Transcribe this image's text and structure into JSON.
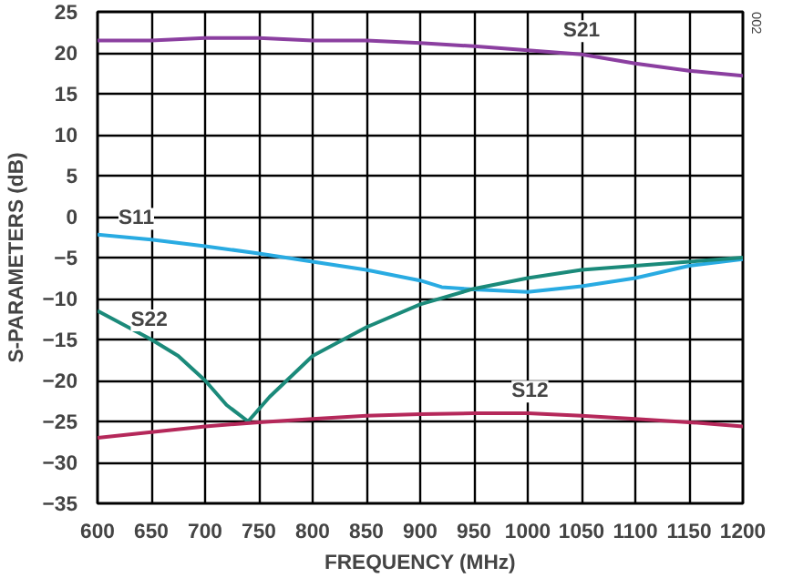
{
  "chart_data": {
    "type": "line",
    "xlabel": "FREQUENCY (MHz)",
    "ylabel": "S-PARAMETERS (dB)",
    "x": [
      600,
      650,
      700,
      750,
      800,
      850,
      900,
      950,
      1000,
      1050,
      1100,
      1150,
      1200
    ],
    "series": [
      {
        "name": "S21",
        "color": "#8b3fa0",
        "values": [
          21.5,
          21.5,
          21.8,
          21.8,
          21.5,
          21.5,
          21.2,
          20.8,
          20.3,
          19.8,
          18.7,
          17.8,
          17.2
        ]
      },
      {
        "name": "S11",
        "color": "#29abe2",
        "x": [
          600,
          650,
          700,
          750,
          800,
          850,
          900,
          920,
          950,
          1000,
          1050,
          1100,
          1150,
          1200
        ],
        "values": [
          -2.2,
          -2.8,
          -3.6,
          -4.5,
          -5.5,
          -6.5,
          -7.8,
          -8.6,
          -8.9,
          -9.2,
          -8.5,
          -7.5,
          -6.0,
          -5.2
        ]
      },
      {
        "name": "S22",
        "color": "#1b8a7a",
        "x": [
          600,
          650,
          675,
          700,
          720,
          740,
          760,
          800,
          850,
          900,
          950,
          1000,
          1050,
          1100,
          1150,
          1200
        ],
        "values": [
          -11.5,
          -15,
          -17,
          -20,
          -23,
          -25,
          -22,
          -17,
          -13.5,
          -10.7,
          -8.8,
          -7.5,
          -6.5,
          -6,
          -5.5,
          -5.0
        ]
      },
      {
        "name": "S12",
        "color": "#b5285a",
        "values": [
          -27,
          -26.3,
          -25.6,
          -25.1,
          -24.7,
          -24.3,
          -24.1,
          -24,
          -24,
          -24.3,
          -24.7,
          -25.1,
          -25.6
        ]
      }
    ],
    "xlim": [
      600,
      1200
    ],
    "xticks": [
      600,
      650,
      700,
      750,
      800,
      850,
      900,
      950,
      1000,
      1050,
      1100,
      1150,
      1200
    ],
    "ylim": [
      -35,
      25
    ],
    "yticks": [
      -35,
      -30,
      -25,
      -20,
      -15,
      -10,
      -5,
      0,
      5,
      10,
      15,
      20,
      25
    ],
    "grid": true,
    "annotations": [
      "002"
    ]
  }
}
